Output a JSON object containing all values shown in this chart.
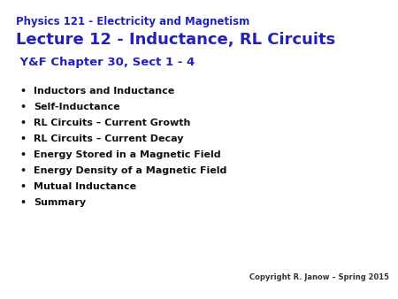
{
  "background_color": "#ffffff",
  "title_color": "#2222bb",
  "bullet_color": "#111111",
  "copyright_color": "#333333",
  "line1": "Physics 121 - Electricity and Magnetism",
  "line2": "Lecture 12 - Inductance, RL Circuits",
  "line3": " Y&F Chapter 30, Sect 1 - 4",
  "bullet_items": [
    "Inductors and Inductance",
    "Self-Inductance",
    "RL Circuits – Current Growth",
    "RL Circuits – Current Decay",
    "Energy Stored in a Magnetic Field",
    "Energy Density of a Magnetic Field",
    "Mutual Inductance",
    "Summary"
  ],
  "copyright": "Copyright R. Janow – Spring 2015",
  "line1_fontsize": 8.5,
  "line2_fontsize": 13.0,
  "line3_fontsize": 9.5,
  "bullet_fontsize": 8.0,
  "copyright_fontsize": 6.0,
  "fig_width": 4.5,
  "fig_height": 3.38,
  "dpi": 100
}
